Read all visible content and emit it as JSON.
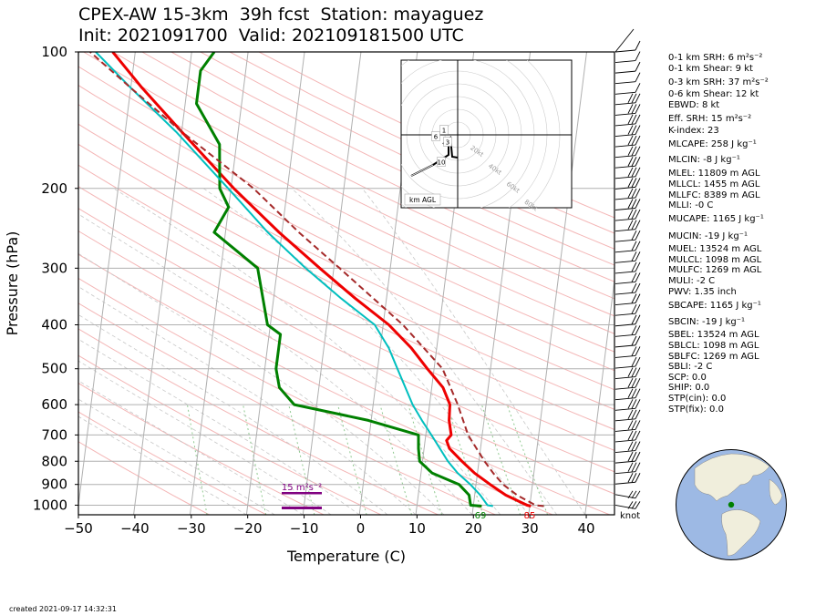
{
  "title_line1": "CPEX-AW 15-3km  39h fcst  Station: mayaguez",
  "title_line2": "Init: 2021091700  Valid: 202109181500 UTC",
  "created": "created 2021-09-17 14:32:31",
  "colors": {
    "temperature": "#ee0000",
    "dewpoint": "#008000",
    "wetbulb": "#00bfbf",
    "parcel": "#a52a2a",
    "srh": "#800080",
    "isotherm": "#b0b0b0",
    "dry_adiabat": "#f4b6b6",
    "moist_adiabat": "#c8c8c8",
    "mixing_ratio": "#8fc98f",
    "ocean": "#9db9e4",
    "land": "#f0eedc",
    "station_dot": "#008000"
  },
  "indices": [
    "0-1 km SRH: 6 m²s⁻²",
    "0-1 km Shear: 9 kt",
    "0-3 km SRH: 37 m²s⁻²",
    "0-6 km Shear: 12 kt",
    "EBWD: 8 kt",
    "Eff. SRH: 15 m²s⁻²",
    "K-index: 23",
    "MLCAPE: 258 J kg⁻¹",
    "MLCIN: -8 J kg⁻¹",
    "MLEL: 11809 m AGL",
    "MLLCL: 1455 m AGL",
    "MLLFC: 8389 m AGL",
    "MLLI: -0 C",
    "MUCAPE: 1165 J kg⁻¹",
    "MUCIN: -19 J kg⁻¹",
    "MUEL: 13524 m AGL",
    "MULCL: 1098 m AGL",
    "MULFC: 1269 m AGL",
    "MULI: -2 C",
    "PWV: 1.35 inch",
    "SBCAPE: 1165 J kg⁻¹",
    "SBCIN: -19 J kg⁻¹",
    "SBEL: 13524 m AGL",
    "SBLCL: 1098 m AGL",
    "SBLFC: 1269 m AGL",
    "SBLI: -2 C",
    "SCP: 0.0",
    "SHIP: 0.0",
    "STP(cin): 0.0",
    "STP(fix): 0.0"
  ],
  "chart_data": {
    "type": "skew-t",
    "xlabel": "Temperature (C)",
    "ylabel": "Pressure (hPa)",
    "x_ticks": [
      -50,
      -40,
      -30,
      -20,
      -10,
      0,
      10,
      20,
      30,
      40
    ],
    "xlim": [
      -50,
      45
    ],
    "y_ticks": [
      100,
      200,
      300,
      400,
      500,
      600,
      700,
      800,
      900,
      1000
    ],
    "ylim": [
      1050,
      100
    ],
    "y_scale": "log",
    "grid": true,
    "surface_temperature_label": "85",
    "surface_dewpoint_label": "69",
    "srh_label": "15 m²s⁻²",
    "barb_unit": "knot",
    "hodograph": {
      "range_labels": [
        "20kt",
        "40kt",
        "60kt",
        "80kt"
      ],
      "height_labels": [
        "1",
        "6",
        "3",
        "10"
      ],
      "legend": "km AGL"
    },
    "series": [
      {
        "name": "temperature",
        "points": [
          [
            1005,
            30.2
          ],
          [
            1000,
            29.5
          ],
          [
            950,
            25.5
          ],
          [
            900,
            22.5
          ],
          [
            850,
            19.5
          ],
          [
            800,
            17
          ],
          [
            750,
            14.5
          ],
          [
            720,
            13.8
          ],
          [
            700,
            14.5
          ],
          [
            650,
            13.8
          ],
          [
            600,
            13.6
          ],
          [
            550,
            12
          ],
          [
            500,
            8.8
          ],
          [
            450,
            5.5
          ],
          [
            400,
            1
          ],
          [
            350,
            -5.5
          ],
          [
            300,
            -12.5
          ],
          [
            250,
            -20.5
          ],
          [
            200,
            -29.5
          ],
          [
            150,
            -40
          ],
          [
            120,
            -48
          ],
          [
            100,
            -54
          ]
        ]
      },
      {
        "name": "dewpoint",
        "points": [
          [
            1005,
            21.5
          ],
          [
            1000,
            19.5
          ],
          [
            950,
            19
          ],
          [
            900,
            17
          ],
          [
            850,
            12
          ],
          [
            800,
            9.5
          ],
          [
            750,
            9
          ],
          [
            700,
            8.7
          ],
          [
            650,
            -0.5
          ],
          [
            600,
            -14
          ],
          [
            550,
            -17
          ],
          [
            500,
            -18
          ],
          [
            450,
            -18
          ],
          [
            420,
            -18
          ],
          [
            400,
            -20.5
          ],
          [
            300,
            -23.5
          ],
          [
            250,
            -32
          ],
          [
            220,
            -30
          ],
          [
            200,
            -32
          ],
          [
            160,
            -33
          ],
          [
            130,
            -38
          ],
          [
            110,
            -38
          ],
          [
            100,
            -36
          ]
        ]
      },
      {
        "name": "wetbulb",
        "points": [
          [
            1005,
            23.5
          ],
          [
            1000,
            22.5
          ],
          [
            950,
            21
          ],
          [
            900,
            19
          ],
          [
            850,
            16.5
          ],
          [
            800,
            14.5
          ],
          [
            700,
            11
          ],
          [
            650,
            9
          ],
          [
            600,
            7
          ],
          [
            500,
            3.5
          ],
          [
            450,
            1.5
          ],
          [
            400,
            -1.5
          ],
          [
            350,
            -8
          ],
          [
            300,
            -15
          ],
          [
            250,
            -22.5
          ],
          [
            200,
            -30.5
          ],
          [
            150,
            -41
          ],
          [
            120,
            -50
          ],
          [
            100,
            -57
          ]
        ]
      },
      {
        "name": "parcel",
        "points": [
          [
            1005,
            32.5
          ],
          [
            1000,
            31
          ],
          [
            950,
            27.5
          ],
          [
            900,
            24.8
          ],
          [
            850,
            22.8
          ],
          [
            800,
            21
          ],
          [
            700,
            17.5
          ],
          [
            600,
            15
          ],
          [
            500,
            11.5
          ],
          [
            400,
            3.5
          ],
          [
            300,
            -9
          ],
          [
            250,
            -17
          ],
          [
            200,
            -26
          ],
          [
            150,
            -40
          ],
          [
            120,
            -50
          ],
          [
            100,
            -58
          ]
        ]
      }
    ]
  }
}
